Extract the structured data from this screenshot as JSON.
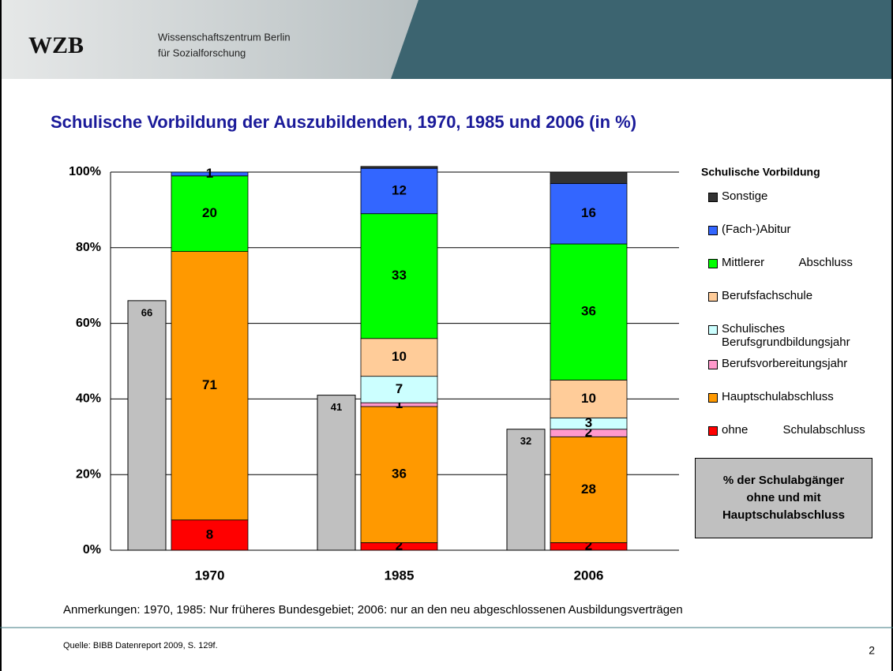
{
  "header": {
    "logo": "WZB",
    "org_line1": "Wissenschaftszentrum Berlin",
    "org_line2": "für Sozialforschung"
  },
  "chart_data": {
    "type": "bar",
    "stacked": true,
    "title": "Schulische Vorbildung der Auszubildenden, 1970, 1985 und 2006 (in %)",
    "categories": [
      "1970",
      "1985",
      "2006"
    ],
    "ylim": [
      0,
      100
    ],
    "yticks": [
      {
        "value": 0,
        "label": "0%"
      },
      {
        "value": 20,
        "label": "20%"
      },
      {
        "value": 40,
        "label": "40%"
      },
      {
        "value": 60,
        "label": "60%"
      },
      {
        "value": 80,
        "label": "80%"
      },
      {
        "value": 100,
        "label": "100%"
      }
    ],
    "grid": true,
    "legend_title": "Schulische Vorbildung",
    "legend_position": "right",
    "series": [
      {
        "name": "ohne Schulabschluss",
        "color": "#ff0000",
        "values": [
          8,
          2,
          2
        ],
        "data_labels": true
      },
      {
        "name": "Hauptschulabschluss",
        "color": "#ff9900",
        "values": [
          71,
          36,
          28
        ],
        "data_labels": true
      },
      {
        "name": "Berufsvorbereitungsjahr",
        "color": "#ff99cc",
        "values": [
          null,
          1,
          2
        ],
        "data_labels": true
      },
      {
        "name": "Schulisches Berufsgrundbildungsjahr",
        "color": "#ccffff",
        "values": [
          null,
          7,
          3
        ],
        "data_labels": true
      },
      {
        "name": "Berufsfachschule",
        "color": "#ffcc99",
        "values": [
          null,
          10,
          10
        ],
        "data_labels": true
      },
      {
        "name": "Mittlerer Abschluss",
        "color": "#00ff00",
        "values": [
          20,
          33,
          36
        ],
        "data_labels": true
      },
      {
        "name": "(Fach-)Abitur",
        "color": "#3366ff",
        "values": [
          1,
          12,
          16
        ],
        "data_labels": true
      },
      {
        "name": "Sonstige",
        "color": "#333333",
        "values": [
          null,
          0.5,
          3
        ],
        "data_labels": false
      }
    ],
    "reference": {
      "name": "% der Schulabgänger ohne und mit Hauptschulabschluss",
      "color": "#c0c0c0",
      "values": [
        66,
        41,
        32
      ]
    },
    "note": "Anmerkungen: 1970, 1985: Nur früheres Bundesgebiet; 2006: nur an den neu abgeschlossenen Ausbildungsverträgen",
    "source": "Quelle: BIBB Datenreport 2009, S. 129f.",
    "page_number": "2"
  }
}
